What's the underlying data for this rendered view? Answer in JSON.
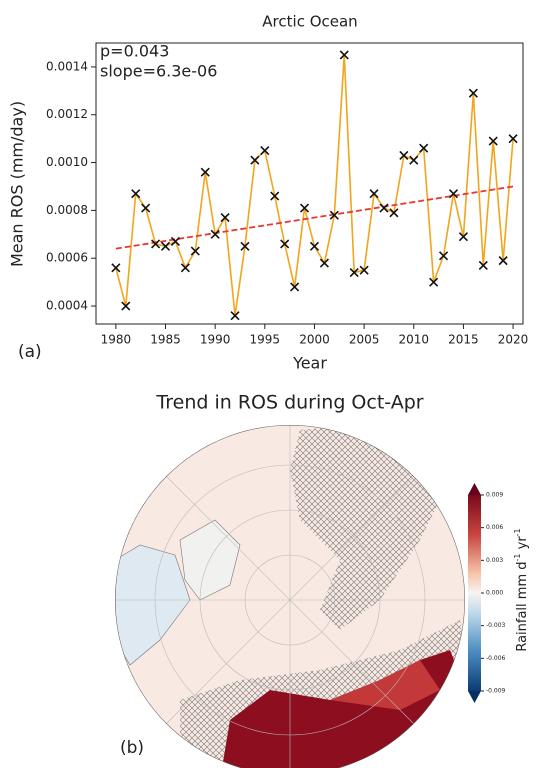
{
  "chart_data": [
    {
      "type": "line",
      "title": "Arctic Ocean",
      "xlabel": "Year",
      "ylabel": "Mean ROS (mm/day)",
      "annotations": [
        "p=0.043",
        "slope=6.3e-06"
      ],
      "panel_label": "(a)",
      "x": [
        1980,
        1981,
        1982,
        1983,
        1984,
        1985,
        1986,
        1987,
        1988,
        1989,
        1990,
        1991,
        1992,
        1993,
        1994,
        1995,
        1996,
        1997,
        1998,
        1999,
        2000,
        2001,
        2002,
        2003,
        2004,
        2005,
        2006,
        2007,
        2008,
        2009,
        2010,
        2011,
        2012,
        2013,
        2014,
        2015,
        2016,
        2017,
        2018,
        2019,
        2020
      ],
      "values": [
        0.00056,
        0.0004,
        0.00087,
        0.00081,
        0.00066,
        0.00065,
        0.00067,
        0.00056,
        0.00063,
        0.00096,
        0.0007,
        0.00077,
        0.00036,
        0.00065,
        0.00101,
        0.00105,
        0.00086,
        0.00066,
        0.00048,
        0.00081,
        0.00065,
        0.00058,
        0.00078,
        0.00145,
        0.00054,
        0.00055,
        0.00087,
        0.00081,
        0.00079,
        0.00103,
        0.00101,
        0.00106,
        0.0005,
        0.00061,
        0.00087,
        0.00069,
        0.00129,
        0.00057,
        0.00109,
        0.00059,
        0.0011
      ],
      "color": "#f2a51c",
      "marker_color": "#111111",
      "trend_line": {
        "x": [
          1980,
          2020
        ],
        "values": [
          0.00064,
          0.0009
        ],
        "color": "#e8382f"
      },
      "xlim": [
        1978,
        2021
      ],
      "xticks": [
        1980,
        1985,
        1990,
        1995,
        2000,
        2005,
        2010,
        2015,
        2020
      ],
      "ylim": [
        0.000325,
        0.0015
      ],
      "yticks": [
        0.0004,
        0.0006,
        0.0008,
        {
          "value": 0.001,
          "label": "0.0010"
        },
        0.0012,
        0.0014
      ]
    },
    {
      "type": "map",
      "title": "Trend in ROS during Oct-Apr",
      "panel_label": "(b)",
      "colorbar_label": {
        "text": "Rainfall mm d",
        "sup1": "-1",
        "mid": " yr",
        "sup2": "-1"
      },
      "clim": [
        -0.009,
        0.009
      ],
      "cticks": [
        0.009,
        0.006,
        0.003,
        {
          "value": 0,
          "label": "0.000"
        },
        -0.003,
        -0.006,
        -0.009
      ]
    }
  ]
}
